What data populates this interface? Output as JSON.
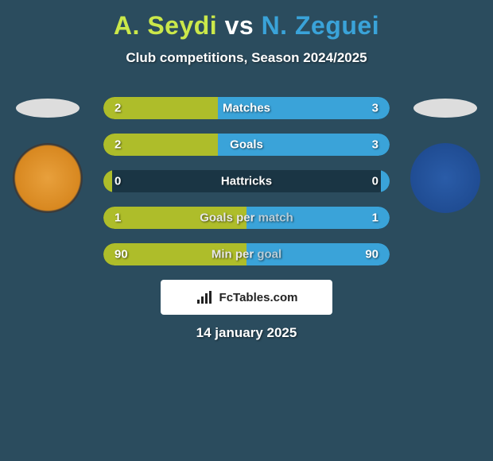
{
  "title": {
    "player1": "A. Seydi",
    "vs": "vs",
    "player2": "N. Zeguei"
  },
  "subtitle": "Club competitions, Season 2024/2025",
  "colors": {
    "player1": "#cbe84a",
    "player2": "#3aa3d9",
    "bar1": "#aebd2a",
    "bar2": "#3aa3d9",
    "background": "#2b4c5e",
    "row_bg": "#1a3544"
  },
  "stats": [
    {
      "label": "Matches",
      "left_val": "2",
      "right_val": "3",
      "left_pct": 40,
      "right_pct": 60
    },
    {
      "label": "Goals",
      "left_val": "2",
      "right_val": "3",
      "left_pct": 40,
      "right_pct": 60
    },
    {
      "label": "Hattricks",
      "left_val": "0",
      "right_val": "0",
      "left_pct": 3,
      "right_pct": 3
    },
    {
      "label": "Goals per match",
      "left_val": "1",
      "right_val": "1",
      "left_pct": 50,
      "right_pct": 50
    },
    {
      "label": "Min per goal",
      "left_val": "90",
      "right_val": "90",
      "left_pct": 50,
      "right_pct": 50
    }
  ],
  "footer_brand": "FcTables.com",
  "date": "14 january 2025",
  "badges": {
    "left_text": "",
    "right_text": ""
  }
}
